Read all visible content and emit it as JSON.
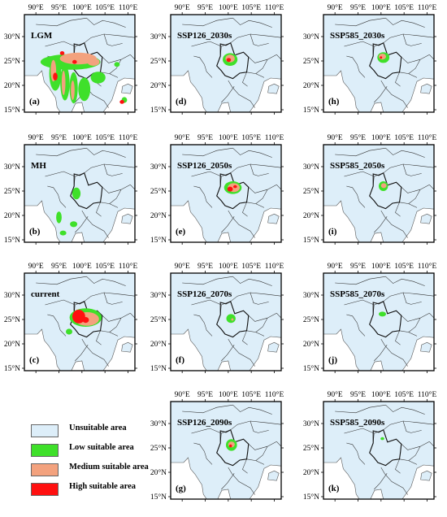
{
  "colors": {
    "unsuitable": "#ddeef9",
    "low": "#3fe02a",
    "medium": "#f3a27e",
    "high": "#ff1010",
    "sea": "#ffffff",
    "border": "#333333"
  },
  "axis_labels": {
    "x": [
      "90°E",
      "95°E",
      "100°E",
      "105°E",
      "110°E"
    ],
    "y": [
      "30°N",
      "25°N",
      "20°N",
      "15°N"
    ]
  },
  "panels": [
    {
      "id": "a",
      "title": "LGM",
      "letter": "(a)"
    },
    {
      "id": "b",
      "title": "MH",
      "letter": "(b)"
    },
    {
      "id": "c",
      "title": "current",
      "letter": "(c)"
    },
    {
      "id": "d",
      "title": "SSP126_2030s",
      "letter": "(d)"
    },
    {
      "id": "e",
      "title": "SSP126_2050s",
      "letter": "(e)"
    },
    {
      "id": "f",
      "title": "SSP126_2070s",
      "letter": "(f)"
    },
    {
      "id": "g",
      "title": "SSP126_2090s",
      "letter": "(g)"
    },
    {
      "id": "h",
      "title": "SSP585_2030s",
      "letter": "(h)"
    },
    {
      "id": "i",
      "title": "SSP585_2050s",
      "letter": "(i)"
    },
    {
      "id": "j",
      "title": "SSP585_2070s",
      "letter": "(j)"
    },
    {
      "id": "k",
      "title": "SSP585_2090s",
      "letter": "(k)"
    }
  ],
  "legend": [
    {
      "key": "unsuitable",
      "label": "Unsuitable area"
    },
    {
      "key": "low",
      "label": "Low suitable area"
    },
    {
      "key": "medium",
      "label": "Medium suitable area"
    },
    {
      "key": "high",
      "label": "High suitable area"
    }
  ]
}
